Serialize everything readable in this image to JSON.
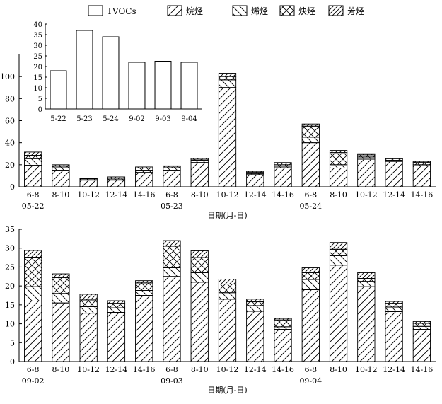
{
  "legend": {
    "position": "top",
    "items": [
      {
        "label": "TVOCs",
        "pattern": "empty"
      },
      {
        "label": "烷烃",
        "pattern": "diag-right"
      },
      {
        "label": "烯烃",
        "pattern": "diag-left"
      },
      {
        "label": "炔烃",
        "pattern": "cross"
      },
      {
        "label": "芳烃",
        "pattern": "diag-right-dense"
      }
    ]
  },
  "chart_data": [
    {
      "type": "bar",
      "stacked": true,
      "xlabel": "日期(月-日)",
      "ylabel": "",
      "ylim": [
        0,
        120
      ],
      "yticks": [
        0,
        20,
        40,
        60,
        80,
        100
      ],
      "categories": [
        "6-8",
        "8-10",
        "10-12",
        "12-14",
        "14-16",
        "6-8",
        "8-10",
        "10-12",
        "12-14",
        "14-16",
        "6-8",
        "8-10",
        "10-12",
        "12-14",
        "14-16"
      ],
      "groups": [
        "05-22",
        "05-23",
        "05-24"
      ],
      "series": [
        {
          "name": "烷烃",
          "values": [
            19.5,
            15,
            6,
            6,
            13,
            15,
            22,
            90,
            11,
            17,
            40,
            17,
            25,
            23,
            19
          ]
        },
        {
          "name": "烯烃",
          "values": [
            6,
            3,
            1,
            1,
            2,
            2,
            2,
            7,
            1,
            1,
            5,
            3,
            2,
            1,
            1
          ]
        },
        {
          "name": "炔烃",
          "values": [
            3,
            1,
            0.5,
            1,
            2,
            1,
            1,
            3,
            1,
            2,
            10,
            11,
            2,
            1.5,
            2
          ]
        },
        {
          "name": "芳烃",
          "values": [
            3,
            1,
            0.5,
            1,
            1,
            1,
            1,
            3,
            1,
            2,
            2,
            2,
            1,
            0.5,
            1
          ]
        }
      ]
    },
    {
      "type": "bar",
      "inset": true,
      "xlabel": "",
      "ylabel": "",
      "ylim": [
        0,
        40
      ],
      "yticks": [
        0,
        5,
        10,
        15,
        20,
        25,
        30,
        35,
        40
      ],
      "categories": [
        "5-22",
        "5-23",
        "5-24",
        "9-02",
        "9-03",
        "9-04"
      ],
      "series": [
        {
          "name": "TVOCs",
          "values": [
            18,
            37,
            34,
            22,
            22.5,
            22
          ]
        }
      ]
    },
    {
      "type": "bar",
      "stacked": true,
      "xlabel": "日期(月-日)",
      "ylabel": "",
      "ylim": [
        0,
        35
      ],
      "yticks": [
        0,
        5,
        10,
        15,
        20,
        25,
        30,
        35
      ],
      "categories": [
        "6-8",
        "8-10",
        "10-12",
        "12-14",
        "14-16",
        "6-8",
        "8-10",
        "10-12",
        "12-14",
        "14-16",
        "6-8",
        "8-10",
        "10-12",
        "12-14",
        "14-16"
      ],
      "groups": [
        "09-02",
        "09-03",
        "09-04"
      ],
      "series": [
        {
          "name": "烷烃",
          "values": [
            16,
            15.5,
            12.8,
            13,
            17.5,
            22.5,
            21,
            16.5,
            13.3,
            8.5,
            19,
            25.5,
            19.8,
            13.2,
            8.5
          ]
        },
        {
          "name": "烯烃",
          "values": [
            3.8,
            2.5,
            1.7,
            1.2,
            1.3,
            2.3,
            2.5,
            1.7,
            1.5,
            0.7,
            2.7,
            2.5,
            1.4,
            1.2,
            0.8
          ]
        },
        {
          "name": "炔烃",
          "values": [
            7.8,
            4.2,
            1.8,
            1.2,
            2,
            5.7,
            4,
            2.3,
            1,
            1.8,
            1.8,
            1.7,
            0.8,
            1,
            0.8
          ]
        },
        {
          "name": "芳烃",
          "values": [
            1.8,
            1,
            1.5,
            0.7,
            0.6,
            1.5,
            1.8,
            1.3,
            0.7,
            0.4,
            1.3,
            1.8,
            1.5,
            0.5,
            0.5
          ]
        }
      ]
    }
  ]
}
